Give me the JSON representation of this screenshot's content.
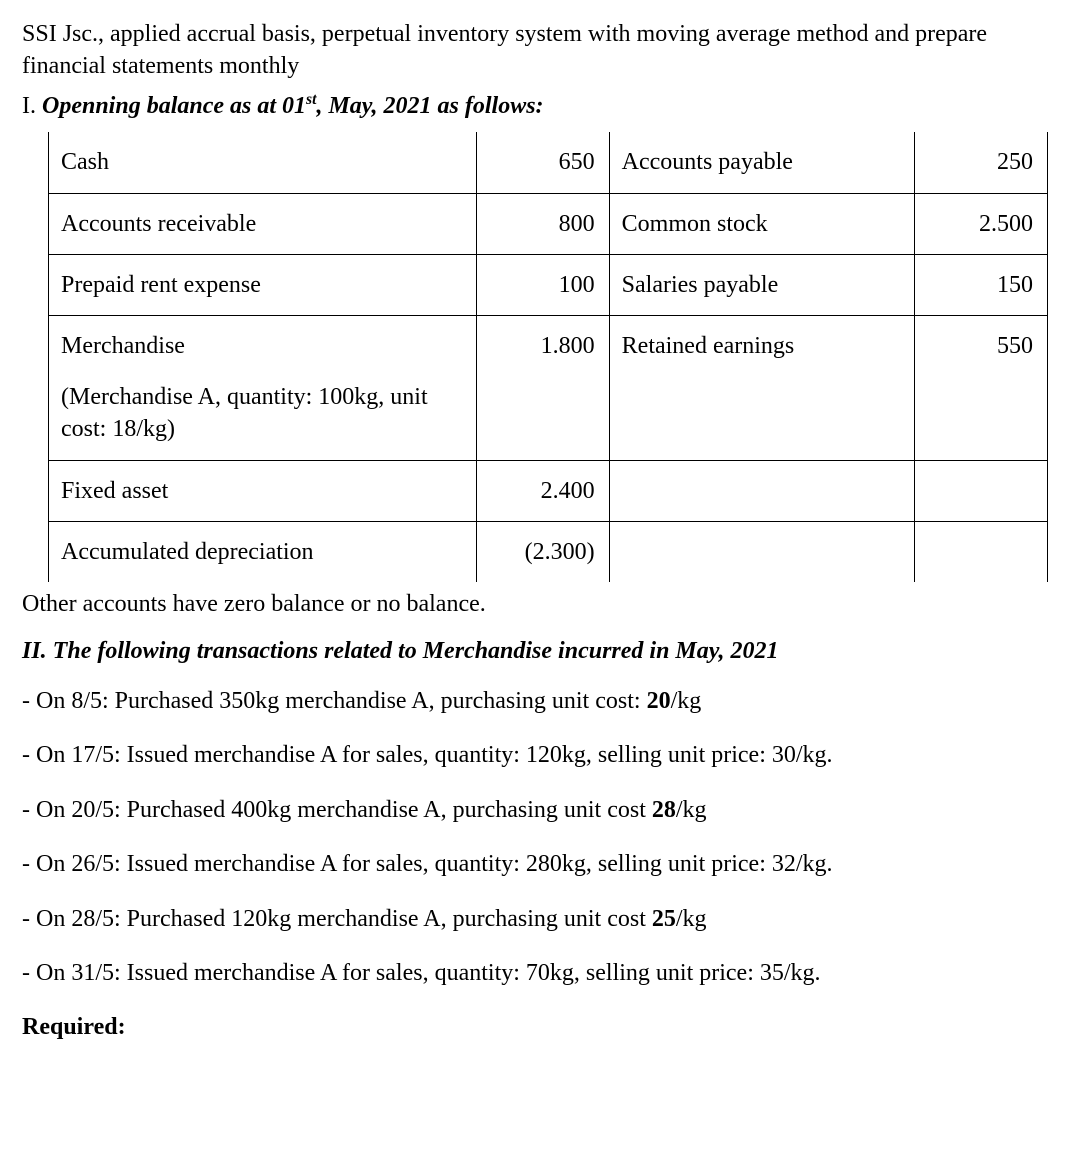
{
  "intro": "SSI Jsc., applied accrual basis, perpetual inventory system with moving average method and prepare financial statements monthly",
  "section1": {
    "roman": "I. ",
    "title_pre": "Openning balance as at 01",
    "title_sup": "st",
    "title_post": ", May, 2021 as follows:"
  },
  "balance": {
    "rows": [
      {
        "l_label": "Cash",
        "l_val": "650",
        "r_label": "Accounts payable",
        "r_val": "250"
      },
      {
        "l_label": "Accounts receivable",
        "l_val": "800",
        "r_label": "Common stock",
        "r_val": "2.500"
      },
      {
        "l_label": "Prepaid rent expense",
        "l_val": "100",
        "r_label": "Salaries payable",
        "r_val": "150"
      },
      {
        "l_label": "Merchandise",
        "l_sub": "(Merchandise A, quantity: 100kg, unit cost: 18/kg)",
        "l_val": "1.800",
        "r_label": "Retained earnings",
        "r_val": "550"
      },
      {
        "l_label": "Fixed  asset",
        "l_val": "2.400",
        "r_label": "",
        "r_val": ""
      },
      {
        "l_label": "Accumulated depreciation",
        "l_val": "(2.300)",
        "r_label": "",
        "r_val": ""
      }
    ]
  },
  "after_table": "Other accounts have zero balance or no balance.",
  "section2_heading": "II. The following transactions related to Merchandise incurred in May, 2021",
  "tx": {
    "t1_a": "- On 8/5: Purchased 350kg merchandise A, purchasing unit cost: ",
    "t1_b": "20",
    "t1_c": "/kg",
    "t2": "- On 17/5: Issued merchandise A for sales, quantity: 120kg, selling unit price: 30/kg.",
    "t3_a": "- On 20/5: Purchased 400kg merchandise A, purchasing unit cost ",
    "t3_b": "28",
    "t3_c": "/kg",
    "t4": "- On 26/5: Issued merchandise A for sales, quantity: 280kg, selling unit price: 32/kg.",
    "t5_a": "- On 28/5: Purchased 120kg merchandise A, purchasing unit cost ",
    "t5_b": "25",
    "t5_c": "/kg",
    "t6": "- On 31/5: Issued merchandise A for sales, quantity: 70kg, selling unit price: 35/kg."
  },
  "required": "Required:"
}
